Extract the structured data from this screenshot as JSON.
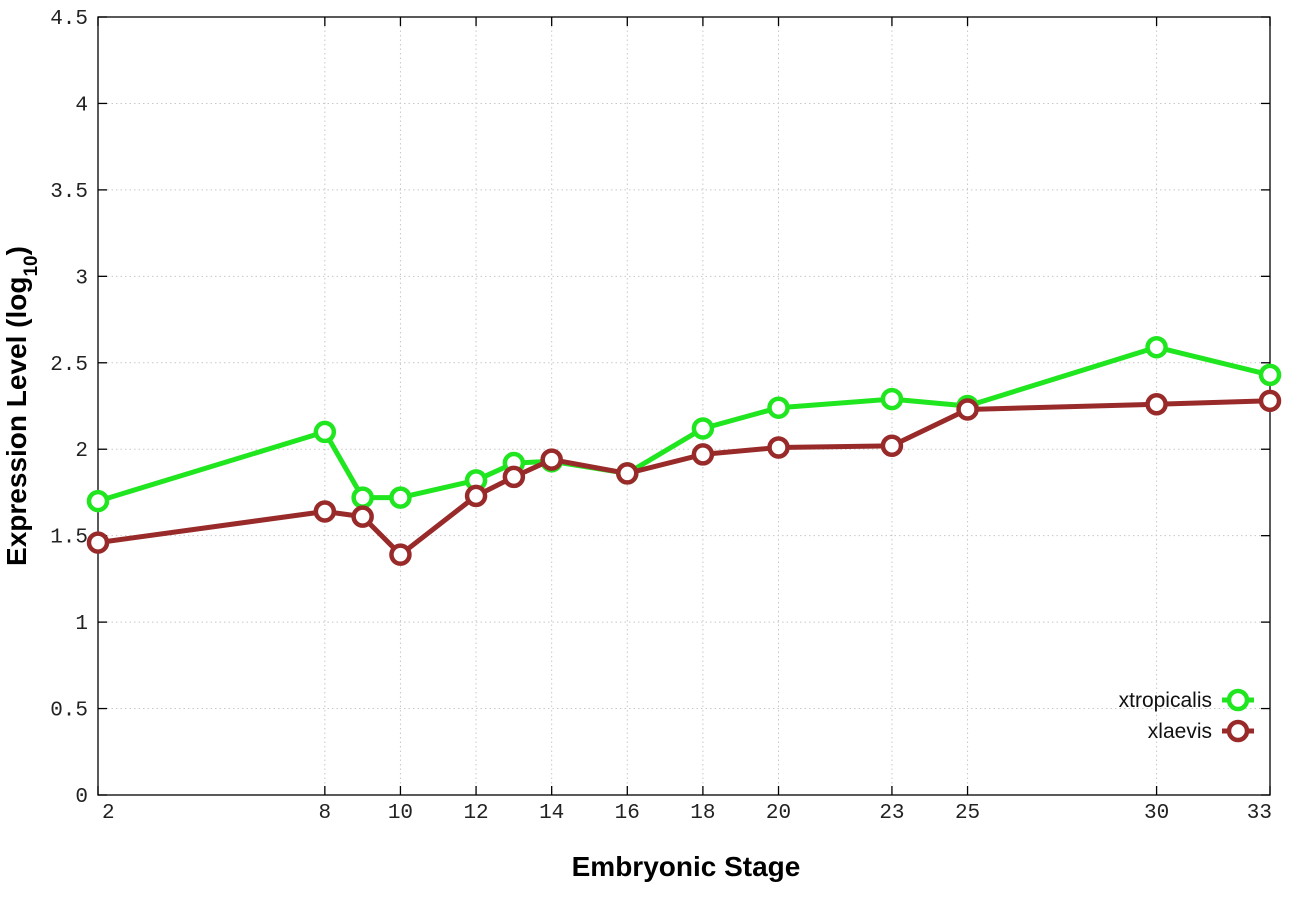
{
  "chart_data": {
    "type": "line",
    "title": "",
    "xlabel": "Embryonic Stage",
    "ylabel_main": "Expression Level (log",
    "ylabel_sub": "10",
    "ylabel_close": ")",
    "x_ticks": [
      2,
      8,
      10,
      12,
      14,
      16,
      18,
      20,
      23,
      25,
      30,
      33
    ],
    "y_ticks": [
      "0",
      "0.5",
      "1",
      "1.5",
      "2",
      "2.5",
      "3",
      "3.5",
      "4",
      "4.5"
    ],
    "ylim": [
      0,
      4.5
    ],
    "grid": true,
    "legend_position": "bottom-right",
    "series": [
      {
        "name": "xtropicalis",
        "color": "#1fe61f",
        "points": [
          {
            "x": 2,
            "y": 1.7
          },
          {
            "x": 8,
            "y": 2.1
          },
          {
            "x": 9,
            "y": 1.72
          },
          {
            "x": 10,
            "y": 1.72
          },
          {
            "x": 12,
            "y": 1.82
          },
          {
            "x": 13,
            "y": 1.92
          },
          {
            "x": 14,
            "y": 1.93
          },
          {
            "x": 16,
            "y": 1.86
          },
          {
            "x": 18,
            "y": 2.12
          },
          {
            "x": 20,
            "y": 2.24
          },
          {
            "x": 23,
            "y": 2.29
          },
          {
            "x": 25,
            "y": 2.25
          },
          {
            "x": 30,
            "y": 2.59
          },
          {
            "x": 33,
            "y": 2.43
          }
        ]
      },
      {
        "name": "xlaevis",
        "color": "#992a2a",
        "points": [
          {
            "x": 2,
            "y": 1.46
          },
          {
            "x": 8,
            "y": 1.64
          },
          {
            "x": 9,
            "y": 1.61
          },
          {
            "x": 10,
            "y": 1.39
          },
          {
            "x": 12,
            "y": 1.73
          },
          {
            "x": 13,
            "y": 1.84
          },
          {
            "x": 14,
            "y": 1.94
          },
          {
            "x": 16,
            "y": 1.86
          },
          {
            "x": 18,
            "y": 1.97
          },
          {
            "x": 20,
            "y": 2.01
          },
          {
            "x": 23,
            "y": 2.02
          },
          {
            "x": 25,
            "y": 2.23
          },
          {
            "x": 30,
            "y": 2.26
          },
          {
            "x": 33,
            "y": 2.28
          }
        ]
      }
    ]
  }
}
